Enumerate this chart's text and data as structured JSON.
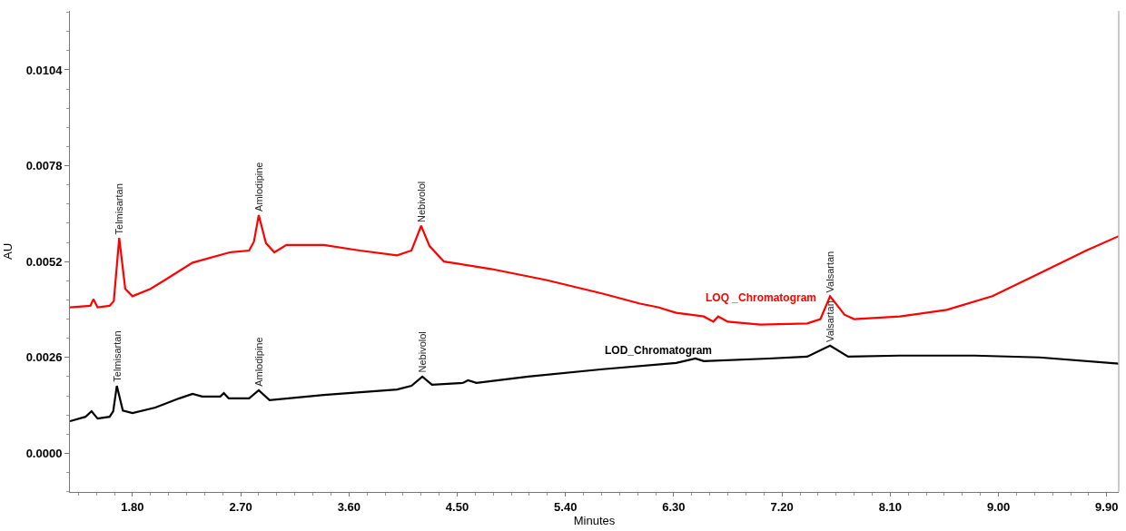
{
  "chart_data": {
    "type": "line",
    "xlabel": "Minutes",
    "ylabel": "AU",
    "xlim": [
      1.28,
      10.0
    ],
    "ylim": [
      -0.00105,
      0.012
    ],
    "xticks": [
      {
        "value": 1.8,
        "label": "1.80"
      },
      {
        "value": 2.7,
        "label": "2.70"
      },
      {
        "value": 3.6,
        "label": "3.60"
      },
      {
        "value": 4.5,
        "label": "4.50"
      },
      {
        "value": 5.4,
        "label": "5.40"
      },
      {
        "value": 6.3,
        "label": "6.30"
      },
      {
        "value": 7.2,
        "label": "7.20"
      },
      {
        "value": 8.1,
        "label": "8.10"
      },
      {
        "value": 9.0,
        "label": "9.00"
      },
      {
        "value": 9.9,
        "label": "9.90"
      }
    ],
    "yticks": [
      {
        "value": 0,
        "label": "0.0000"
      },
      {
        "value": 0.0026,
        "label": "0.0026"
      },
      {
        "value": 0.0052,
        "label": "0.0052"
      },
      {
        "value": 0.0078,
        "label": "0.0078"
      },
      {
        "value": 0.0104,
        "label": "0.0104"
      }
    ],
    "legend": false,
    "marker": "none",
    "line_style": "solid",
    "series": [
      {
        "name": "LOQ _Chromatogram",
        "color": "#ff0000",
        "x": [
          1.28,
          1.45,
          1.475,
          1.51,
          1.61,
          1.645,
          1.69,
          1.74,
          1.8,
          1.95,
          2.07,
          2.3,
          2.61,
          2.77,
          2.81,
          2.85,
          2.91,
          2.98,
          3.08,
          3.39,
          3.69,
          4.0,
          4.12,
          4.2,
          4.27,
          4.39,
          4.78,
          5.24,
          5.71,
          6.02,
          6.17,
          6.32,
          6.55,
          6.63,
          6.67,
          6.75,
          7.02,
          7.41,
          7.52,
          7.6,
          7.72,
          7.8,
          8.18,
          8.57,
          8.95,
          9.34,
          9.73,
          10.0
        ],
        "values": [
          0.00396,
          0.004,
          0.00418,
          0.00396,
          0.004,
          0.00413,
          0.00584,
          0.00446,
          0.00426,
          0.00446,
          0.0047,
          0.00517,
          0.00545,
          0.0055,
          0.00574,
          0.00646,
          0.0057,
          0.00545,
          0.00565,
          0.00565,
          0.0055,
          0.00537,
          0.0055,
          0.00617,
          0.00562,
          0.0052,
          0.005,
          0.0047,
          0.00433,
          0.00406,
          0.00396,
          0.00381,
          0.00371,
          0.00357,
          0.00371,
          0.00357,
          0.00349,
          0.00352,
          0.00364,
          0.00426,
          0.00376,
          0.00364,
          0.00371,
          0.00389,
          0.00426,
          0.00488,
          0.0055,
          0.00589
        ]
      },
      {
        "name": "LOD_Chromatogram",
        "color": "#000000",
        "x": [
          1.28,
          1.41,
          1.46,
          1.51,
          1.61,
          1.64,
          1.67,
          1.72,
          1.8,
          1.99,
          2.19,
          2.3,
          2.38,
          2.53,
          2.56,
          2.6,
          2.77,
          2.85,
          2.94,
          3.39,
          4.0,
          4.12,
          4.21,
          4.29,
          4.55,
          4.59,
          4.66,
          5.09,
          5.71,
          6.32,
          6.48,
          6.55,
          7.09,
          7.41,
          7.6,
          7.75,
          8.18,
          8.8,
          9.34,
          10.0
        ],
        "values": [
          0.00087,
          0.00099,
          0.00114,
          0.00094,
          0.00099,
          0.00114,
          0.00183,
          0.00116,
          0.00109,
          0.00124,
          0.00149,
          0.00161,
          0.00154,
          0.00154,
          0.00163,
          0.00149,
          0.00149,
          0.00171,
          0.00144,
          0.00158,
          0.00173,
          0.00183,
          0.00208,
          0.00186,
          0.00191,
          0.00198,
          0.00191,
          0.00208,
          0.00228,
          0.00245,
          0.00257,
          0.0025,
          0.00257,
          0.00262,
          0.00292,
          0.00262,
          0.00265,
          0.00265,
          0.0026,
          0.00243
        ]
      }
    ],
    "annotations": [
      {
        "text": "Telmisartan",
        "x": 1.69,
        "y": 0.00584
      },
      {
        "text": "Amlodipine",
        "x": 2.85,
        "y": 0.00646
      },
      {
        "text": "Nebivolol",
        "x": 4.2,
        "y": 0.00617
      },
      {
        "text": "Valsartan",
        "x": 7.6,
        "y": 0.00426
      },
      {
        "text": "Telmisartan",
        "x": 1.67,
        "y": 0.00183
      },
      {
        "text": "Amlodipine",
        "x": 2.85,
        "y": 0.00171
      },
      {
        "text": "Nebivolol",
        "x": 4.21,
        "y": 0.00208
      },
      {
        "text": "Valsartan",
        "x": 7.6,
        "y": 0.00292
      }
    ]
  }
}
